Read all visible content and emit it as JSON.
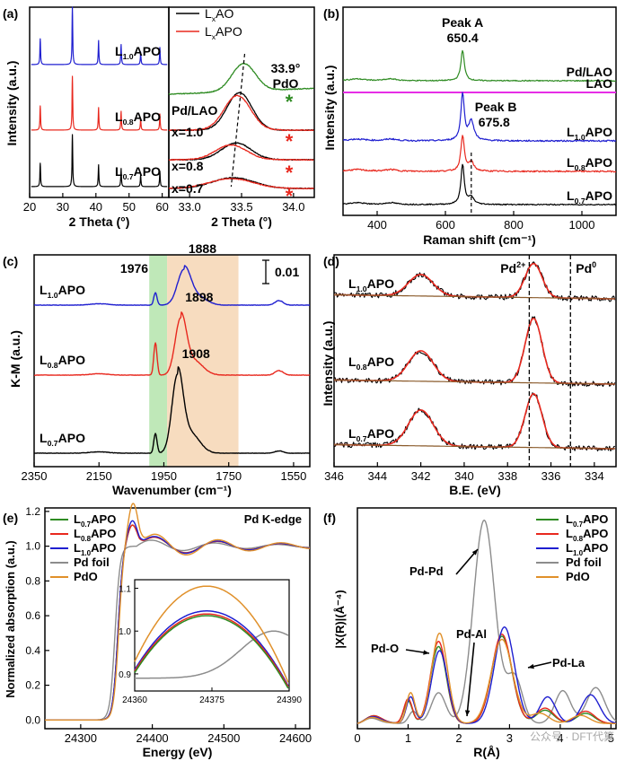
{
  "colors": {
    "black": "#000000",
    "red": "#e8281e",
    "blue": "#1f1fd0",
    "green": "#2e8b22",
    "magenta": "#e62ee6",
    "gray": "#8c8c8c",
    "orange": "#e0902a",
    "band_green": "#bfe8b8",
    "band_orange": "#f7dcbf"
  },
  "chart_data": [
    {
      "id": "a-left",
      "panel": "(a)",
      "type": "line",
      "xlabel": "2 Theta (°)",
      "ylabel": "Intensity (a.u.)",
      "xlim": [
        20,
        62
      ],
      "xticks": [
        20,
        30,
        40,
        50,
        60
      ],
      "series": [
        {
          "name": "L1.0APO",
          "color": "blue"
        },
        {
          "name": "L0.8APO",
          "color": "red"
        },
        {
          "name": "L0.7APO",
          "color": "black"
        }
      ],
      "peaks": [
        {
          "x": 23.2,
          "h": 0.45
        },
        {
          "x": 32.9,
          "h": 1.0
        },
        {
          "x": 40.8,
          "h": 0.42
        },
        {
          "x": 47.6,
          "h": 0.35
        },
        {
          "x": 53.5,
          "h": 0.22
        },
        {
          "x": 59.3,
          "h": 0.3
        }
      ]
    },
    {
      "id": "a-right",
      "panel": "(a)",
      "type": "line",
      "xlabel": "2 Theta (°)",
      "xlim": [
        32.8,
        34.2
      ],
      "xticks": [
        33.0,
        33.5,
        34.0
      ],
      "legend": [
        "LxAO",
        "LxAPO"
      ],
      "annotation": [
        "33.9°",
        "PdO"
      ],
      "offsets": [
        0,
        1,
        2,
        3
      ],
      "labels": [
        "x=0.7",
        "x=0.8",
        "x=1.0",
        "Pd/LAO"
      ],
      "series": [
        {
          "name": "x=0.7 LxAO",
          "color": "black",
          "center": 33.42,
          "width": 0.28,
          "amp": 0.55,
          "off": 0
        },
        {
          "name": "x=0.7 LxAPO",
          "color": "red",
          "center": 33.4,
          "width": 0.3,
          "amp": 0.5,
          "off": 0
        },
        {
          "name": "x=0.8 LxAO",
          "color": "black",
          "center": 33.45,
          "width": 0.2,
          "amp": 0.85,
          "off": 1
        },
        {
          "name": "x=0.8 LxAPO",
          "color": "red",
          "center": 33.4,
          "width": 0.21,
          "amp": 0.75,
          "off": 1
        },
        {
          "name": "x=1.0 LxAO",
          "color": "black",
          "center": 33.48,
          "width": 0.17,
          "amp": 1.9,
          "off": 2
        },
        {
          "name": "x=1.0 LxAPO",
          "color": "red",
          "center": 33.46,
          "width": 0.18,
          "amp": 1.75,
          "off": 2
        },
        {
          "name": "Pd/LAO",
          "color": "green",
          "center": 33.52,
          "width": 0.16,
          "amp": 1.4,
          "off": 3
        }
      ],
      "star_x": 33.9
    },
    {
      "id": "b",
      "panel": "(b)",
      "type": "line",
      "xlabel": "Raman shift (cm⁻¹)",
      "ylabel": "Intensity (a.u.)",
      "xlim": [
        300,
        1100
      ],
      "xticks": [
        400,
        600,
        800,
        1000
      ],
      "annotations": [
        {
          "label": "Peak A",
          "value": "650.4"
        },
        {
          "label": "Peak B",
          "value": "675.8"
        }
      ],
      "series": [
        {
          "name": "Pd/LAO",
          "color": "green"
        },
        {
          "name": "LAO",
          "color": "magenta"
        },
        {
          "name": "L1.0APO",
          "color": "blue"
        },
        {
          "name": "L0.8APO",
          "color": "red"
        },
        {
          "name": "L0.7APO",
          "color": "black"
        }
      ],
      "peak_a": 650.4,
      "peak_b": 675.8
    },
    {
      "id": "c",
      "panel": "(c)",
      "type": "line",
      "xlabel": "Wavenumber (cm⁻¹)",
      "ylabel": "K-M (a.u.)",
      "xlim": [
        2350,
        1500
      ],
      "xticks": [
        2350,
        2150,
        1950,
        1750,
        1550
      ],
      "scalebar": "0.01",
      "bands": [
        {
          "from": 1995,
          "to": 1940
        },
        {
          "from": 1940,
          "to": 1720
        }
      ],
      "series": [
        {
          "name": "L1.0APO",
          "color": "blue",
          "peak_label": "1888",
          "p1": 1976,
          "p2": 1888
        },
        {
          "name": "L0.8APO",
          "color": "red",
          "peak_label": "1898",
          "p1": 1976,
          "p2": 1898
        },
        {
          "name": "L0.7APO",
          "color": "black",
          "peak_label": "1908",
          "p1": 1976,
          "p2": 1908
        }
      ],
      "extra_label": "1976"
    },
    {
      "id": "d",
      "panel": "(d)",
      "type": "line",
      "xlabel": "B.E. (eV)",
      "ylabel": "Intensity (a.u.)",
      "xlim": [
        346,
        333
      ],
      "xticks": [
        346,
        344,
        342,
        340,
        338,
        336,
        334
      ],
      "markers": [
        {
          "label": "Pd2+",
          "x": 337.0
        },
        {
          "label": "Pd0",
          "x": 335.1
        }
      ],
      "series": [
        {
          "name": "L1.0APO"
        },
        {
          "name": "L0.8APO"
        },
        {
          "name": "L0.7APO"
        }
      ]
    },
    {
      "id": "e",
      "panel": "(e)",
      "type": "line",
      "xlabel": "Energy (eV)",
      "ylabel": "Normalized absorption (a.u.)",
      "xlim": [
        24250,
        24620
      ],
      "ylim": [
        -0.05,
        1.22
      ],
      "xticks": [
        24300,
        24400,
        24500,
        24600
      ],
      "yticks": [
        0.0,
        0.2,
        0.4,
        0.6,
        0.8,
        1.0,
        1.2
      ],
      "title": "Pd K-edge",
      "series": [
        {
          "name": "L0.7APO",
          "color": "green"
        },
        {
          "name": "L0.8APO",
          "color": "red"
        },
        {
          "name": "L1.0APO",
          "color": "blue"
        },
        {
          "name": "Pd foil",
          "color": "gray"
        },
        {
          "name": "PdO",
          "color": "orange"
        }
      ],
      "inset": {
        "xlim": [
          24360,
          24390
        ],
        "ylim": [
          0.86,
          1.12
        ],
        "xticks": [
          24360,
          24375,
          24390
        ],
        "yticks": [
          0.9,
          1.0,
          1.1
        ]
      }
    },
    {
      "id": "f",
      "panel": "(f)",
      "type": "line",
      "xlabel": "R(Å)",
      "ylabel": "|X(R)|(Å⁻⁴)",
      "xlim": [
        0,
        5.1
      ],
      "ylim": [
        -0.5,
        21
      ],
      "xticks": [
        0,
        1,
        2,
        3,
        4,
        5
      ],
      "annotations": [
        "Pd-Pd",
        "Pd-O",
        "Pd-Al",
        "Pd-La"
      ],
      "series": [
        {
          "name": "L0.7APO",
          "color": "green"
        },
        {
          "name": "L0.8APO",
          "color": "red"
        },
        {
          "name": "L1.0APO",
          "color": "blue"
        },
        {
          "name": "Pd foil",
          "color": "gray"
        },
        {
          "name": "PdO",
          "color": "orange"
        }
      ]
    }
  ],
  "watermark": "公众号 · DFT代算"
}
